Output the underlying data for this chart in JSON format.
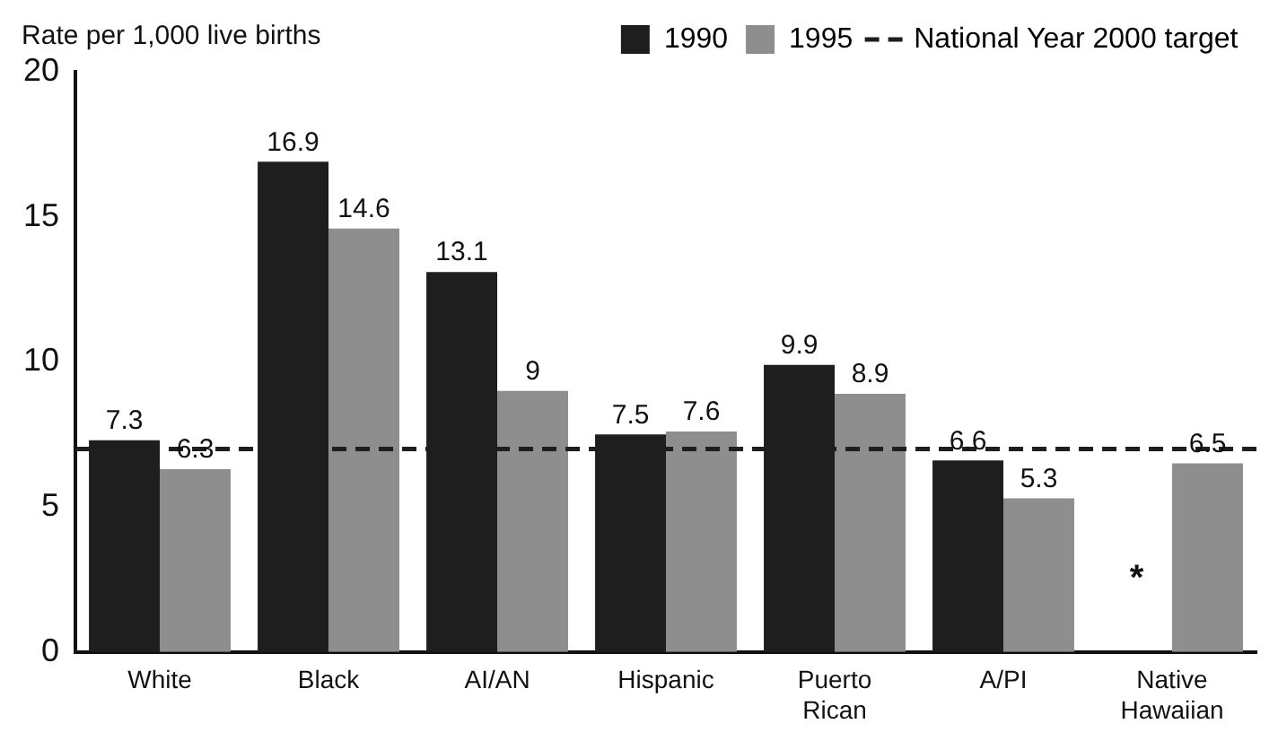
{
  "chart_data": {
    "type": "bar",
    "ylabel": "Rate per 1,000 live births",
    "categories": [
      "White",
      "Black",
      "AI/AN",
      "Hispanic",
      "Puerto Rican",
      "A/PI",
      "Native Hawaiian"
    ],
    "series": [
      {
        "name": "1990",
        "color": "#1e1e1e",
        "values": [
          7.3,
          16.9,
          13.1,
          7.5,
          9.9,
          6.6,
          null
        ]
      },
      {
        "name": "1995",
        "color": "#8e8e8e",
        "values": [
          6.3,
          14.6,
          9,
          7.6,
          8.9,
          5.3,
          6.5
        ]
      }
    ],
    "ylim": [
      0,
      20
    ],
    "yticks": [
      0,
      5,
      10,
      15,
      20
    ],
    "grid": false,
    "legend": "top right",
    "data_labels": true,
    "ref_lines": [
      {
        "axis": "y",
        "value": 7,
        "label": "National Year 2000 target",
        "color": "#1e1e1e",
        "line_style": "dashed"
      }
    ],
    "annotations": [
      {
        "text": "*",
        "x": "Native Hawaiian",
        "y": 2.5
      }
    ]
  }
}
